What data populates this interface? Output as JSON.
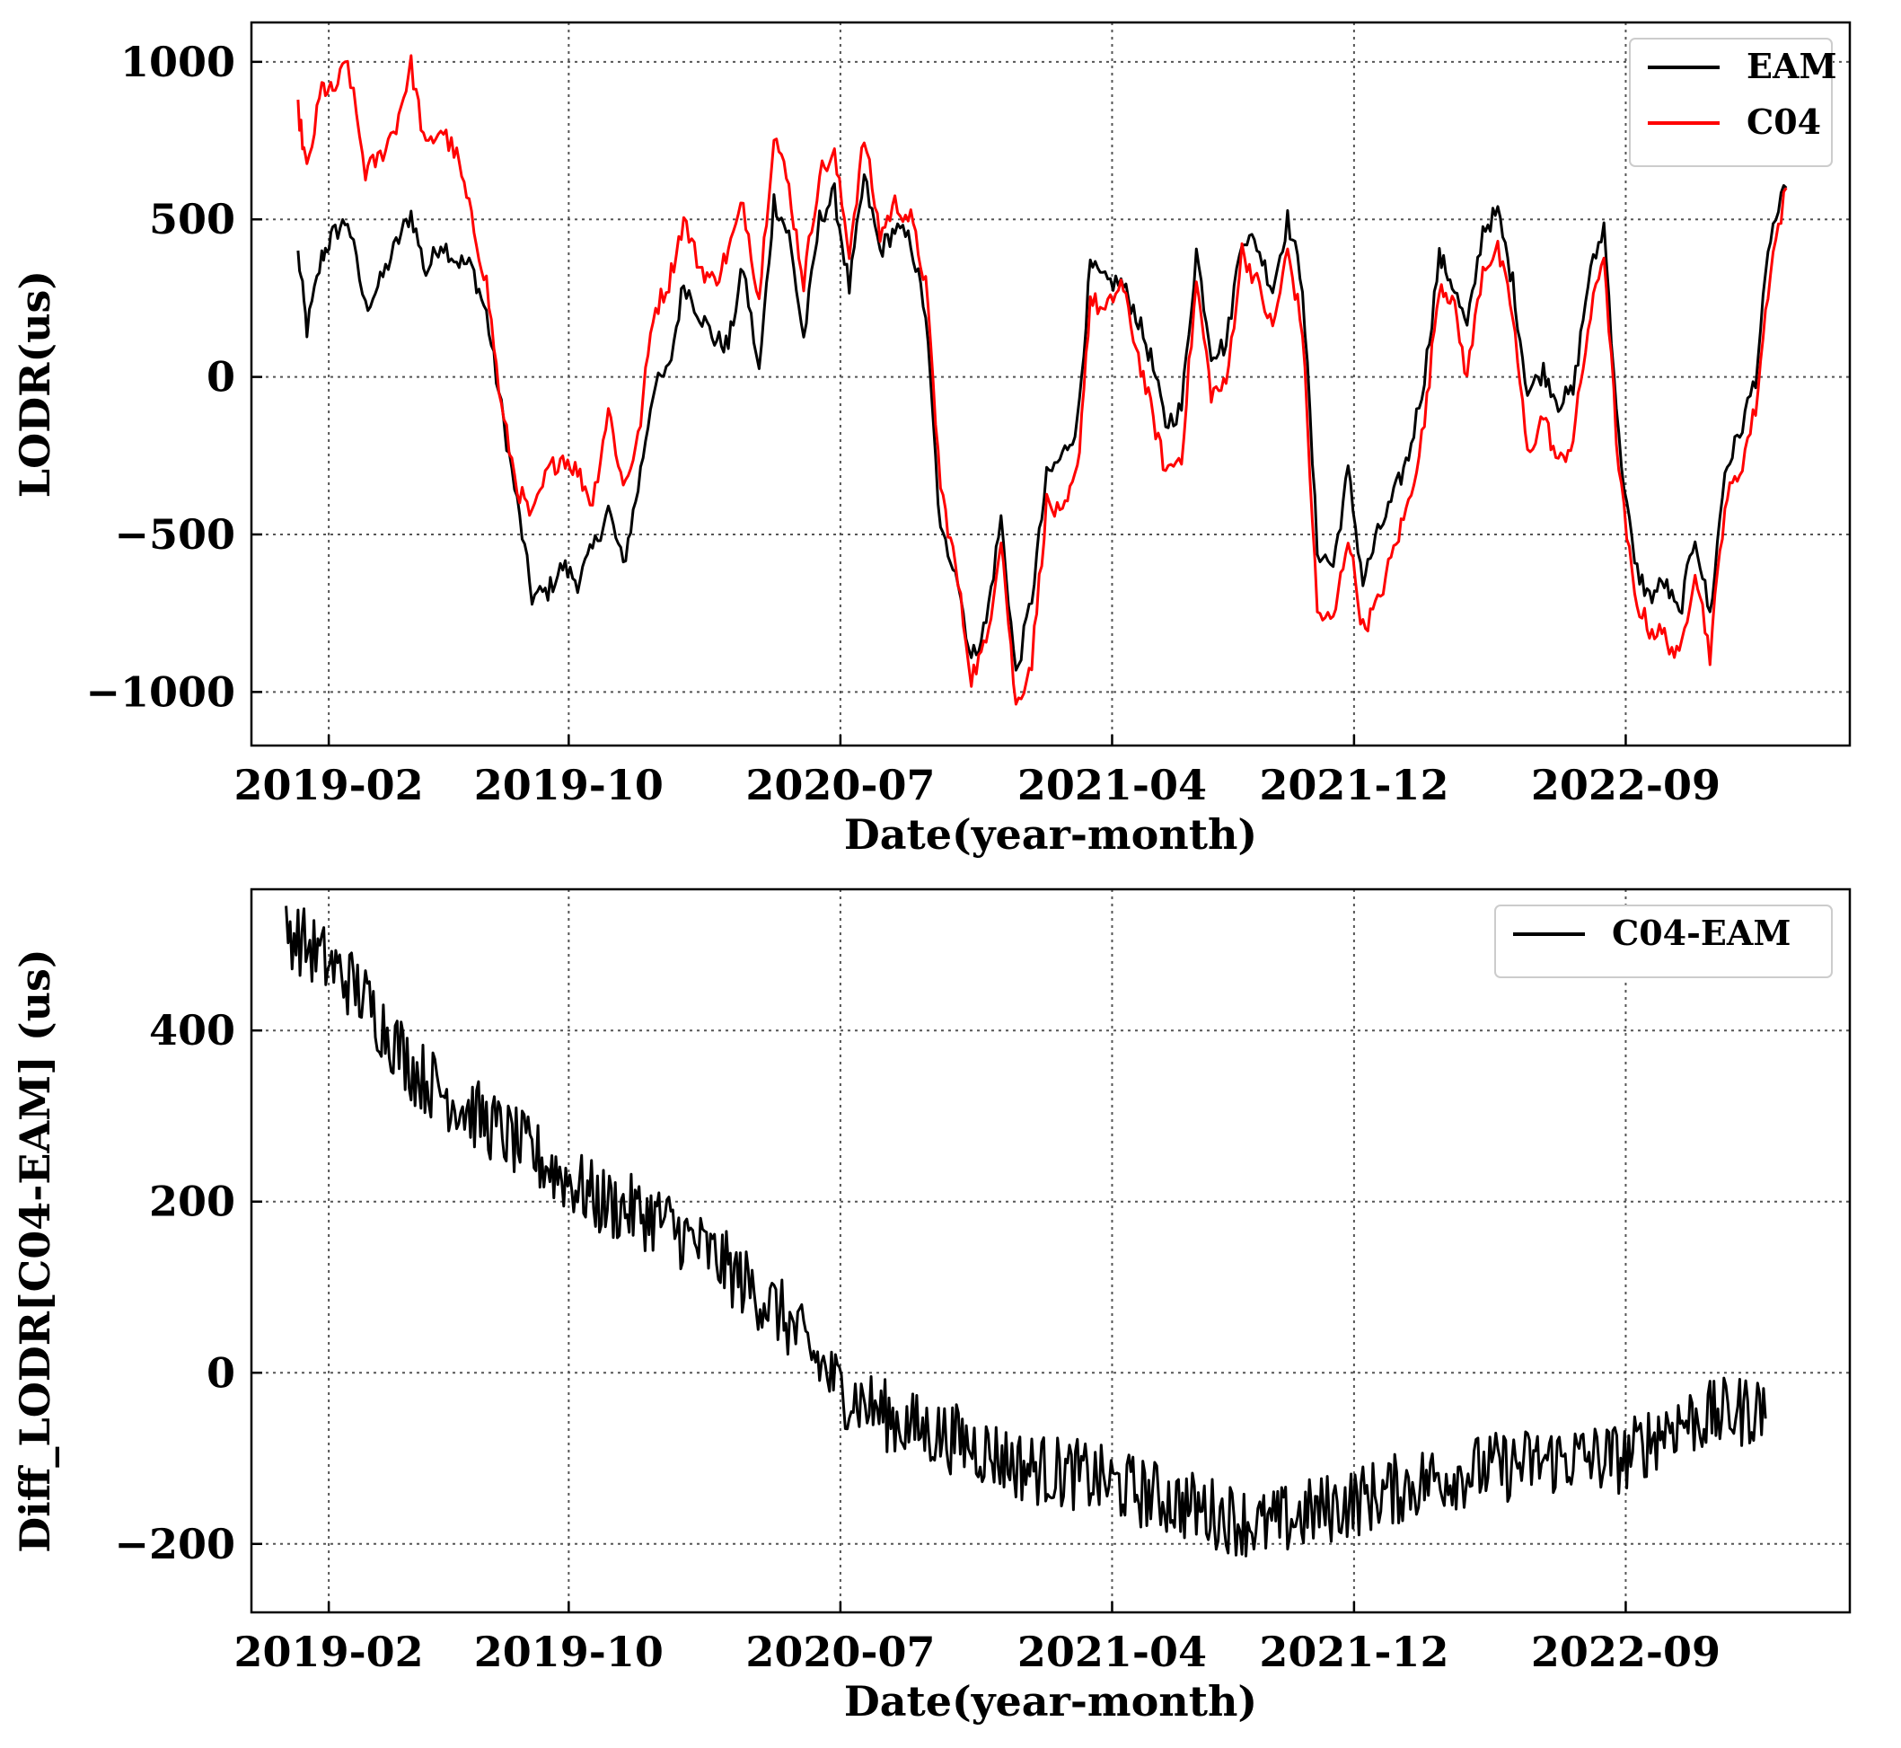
{
  "chart_data": [
    {
      "type": "line",
      "xlabel": "Date(year-month)",
      "ylabel": "LODR(us)",
      "xlim": [
        "2018-11-15",
        "2023-04-15"
      ],
      "ylim": [
        -1170,
        1125
      ],
      "x_ticks": [
        "2019-02",
        "2019-10",
        "2020-07",
        "2021-04",
        "2021-12",
        "2022-09"
      ],
      "y_ticks": [
        1000,
        500,
        0,
        -500,
        -1000
      ],
      "y_tick_labels": [
        "1000",
        "500",
        "0",
        "−5 00",
        "−1000"
      ],
      "grid": true,
      "legend_position": "top-right",
      "series": [
        {
          "name": "EAM",
          "color": "#000000",
          "x": [
            "2019-01-01",
            "2019-01-10",
            "2019-01-25",
            "2019-02-05",
            "2019-02-20",
            "2019-03-10",
            "2019-03-25",
            "2019-04-10",
            "2019-04-25",
            "2019-05-10",
            "2019-05-25",
            "2019-06-10",
            "2019-06-25",
            "2019-07-10",
            "2019-07-25",
            "2019-08-10",
            "2019-08-25",
            "2019-09-10",
            "2019-09-25",
            "2019-10-10",
            "2019-10-25",
            "2019-11-10",
            "2019-11-25",
            "2019-12-10",
            "2019-12-25",
            "2020-01-10",
            "2020-01-25",
            "2020-02-10",
            "2020-02-25",
            "2020-03-10",
            "2020-03-25",
            "2020-04-10",
            "2020-04-25",
            "2020-05-10",
            "2020-05-25",
            "2020-06-10",
            "2020-06-25",
            "2020-07-10",
            "2020-07-25",
            "2020-08-10",
            "2020-08-25",
            "2020-09-10",
            "2020-09-25",
            "2020-10-10",
            "2020-10-25",
            "2020-11-10",
            "2020-11-25",
            "2020-12-10",
            "2020-12-25",
            "2021-01-10",
            "2021-01-25",
            "2021-02-10",
            "2021-02-25",
            "2021-03-10",
            "2021-03-25",
            "2021-04-10",
            "2021-04-25",
            "2021-05-10",
            "2021-05-25",
            "2021-06-10",
            "2021-06-25",
            "2021-07-10",
            "2021-07-25",
            "2021-08-10",
            "2021-08-25",
            "2021-09-10",
            "2021-09-25",
            "2021-10-10",
            "2021-10-25",
            "2021-11-10",
            "2021-11-25",
            "2021-12-10",
            "2021-12-25",
            "2022-01-10",
            "2022-01-25",
            "2022-02-10",
            "2022-02-25",
            "2022-03-10",
            "2022-03-25",
            "2022-04-10",
            "2022-04-25",
            "2022-05-10",
            "2022-05-25",
            "2022-06-10",
            "2022-06-25",
            "2022-07-10",
            "2022-07-25",
            "2022-08-10",
            "2022-08-25",
            "2022-09-10",
            "2022-09-25",
            "2022-10-10",
            "2022-10-25",
            "2022-11-10",
            "2022-11-25",
            "2022-12-10",
            "2022-12-25",
            "2023-01-10",
            "2023-01-25",
            "2023-02-10"
          ],
          "y": [
            390,
            150,
            380,
            450,
            500,
            220,
            300,
            420,
            520,
            330,
            430,
            370,
            350,
            200,
            -100,
            -400,
            -700,
            -680,
            -600,
            -650,
            -550,
            -420,
            -600,
            -350,
            -40,
            20,
            300,
            200,
            120,
            100,
            350,
            10,
            560,
            450,
            120,
            500,
            580,
            280,
            630,
            400,
            470,
            430,
            200,
            -500,
            -600,
            -900,
            -780,
            -450,
            -950,
            -700,
            -320,
            -250,
            -150,
            350,
            300,
            300,
            200,
            60,
            -150,
            -100,
            400,
            80,
            100,
            450,
            420,
            280,
            500,
            300,
            -550,
            -600,
            -300,
            -650,
            -500,
            -380,
            -250,
            0,
            380,
            300,
            150,
            470,
            520,
            300,
            -50,
            20,
            -80,
            -50,
            300,
            480,
            -200,
            -600,
            -700,
            -650,
            -760,
            -500,
            -760,
            -300,
            -180,
            0,
            450,
            600
          ],
          "note_x_alignment": "x and y paired by index; series trimmed to shared length when rendering"
        },
        {
          "name": "C04",
          "color": "#ff0000",
          "x": [
            "2019-01-01",
            "2019-01-10",
            "2019-01-25",
            "2019-02-05",
            "2019-02-20",
            "2019-03-10",
            "2019-03-25",
            "2019-04-10",
            "2019-04-25",
            "2019-05-10",
            "2019-05-25",
            "2019-06-10",
            "2019-06-25",
            "2019-07-10",
            "2019-07-25",
            "2019-08-10",
            "2019-08-25",
            "2019-09-10",
            "2019-09-25",
            "2019-10-10",
            "2019-10-25",
            "2019-11-10",
            "2019-11-25",
            "2019-12-10",
            "2019-12-25",
            "2020-01-10",
            "2020-01-25",
            "2020-02-10",
            "2020-02-25",
            "2020-03-10",
            "2020-03-25",
            "2020-04-10",
            "2020-04-25",
            "2020-05-10",
            "2020-05-25",
            "2020-06-10",
            "2020-06-25",
            "2020-07-10",
            "2020-07-25",
            "2020-08-10",
            "2020-08-25",
            "2020-09-10",
            "2020-09-25",
            "2020-10-10",
            "2020-10-25",
            "2020-11-10",
            "2020-11-25",
            "2020-12-10",
            "2020-12-25",
            "2021-01-10",
            "2021-01-25",
            "2021-02-10",
            "2021-02-25",
            "2021-03-10",
            "2021-03-25",
            "2021-04-10",
            "2021-04-25",
            "2021-05-10",
            "2021-05-25",
            "2021-06-10",
            "2021-06-25",
            "2021-07-10",
            "2021-07-25",
            "2021-08-10",
            "2021-08-25",
            "2021-09-10",
            "2021-09-25",
            "2021-10-10",
            "2021-10-25",
            "2021-11-10",
            "2021-11-25",
            "2021-12-10",
            "2021-12-25",
            "2022-01-10",
            "2022-01-25",
            "2022-02-10",
            "2022-02-25",
            "2022-03-10",
            "2022-03-25",
            "2022-04-10",
            "2022-04-25",
            "2022-05-10",
            "2022-05-25",
            "2022-06-10",
            "2022-06-25",
            "2022-07-10",
            "2022-07-25",
            "2022-08-10",
            "2022-08-25",
            "2022-09-10",
            "2022-09-25",
            "2022-10-10",
            "2022-10-25",
            "2022-11-10",
            "2022-11-25",
            "2022-12-10",
            "2022-12-25",
            "2023-01-10",
            "2023-01-25",
            "2023-02-10"
          ],
          "y": [
            850,
            650,
            920,
            900,
            1000,
            650,
            700,
            800,
            990,
            720,
            790,
            700,
            500,
            300,
            -100,
            -350,
            -450,
            -300,
            -250,
            -300,
            -400,
            -100,
            -350,
            -200,
            200,
            300,
            500,
            350,
            300,
            400,
            550,
            250,
            780,
            600,
            300,
            650,
            700,
            400,
            760,
            450,
            550,
            500,
            300,
            -350,
            -600,
            -950,
            -850,
            -500,
            -1050,
            -900,
            -400,
            -450,
            -300,
            250,
            200,
            300,
            100,
            -100,
            -300,
            -250,
            300,
            -50,
            -30,
            400,
            300,
            150,
            400,
            150,
            -750,
            -780,
            -500,
            -800,
            -720,
            -550,
            -400,
            -150,
            300,
            250,
            0,
            350,
            400,
            200,
            -250,
            -120,
            -280,
            -200,
            150,
            400,
            -300,
            -700,
            -800,
            -820,
            -900,
            -600,
            -880,
            -400,
            -300,
            -100,
            350,
            600
          ]
        }
      ]
    },
    {
      "type": "line",
      "xlabel": "Date(year-month)",
      "ylabel": "Diff_LODR[C04-EAM] (us)",
      "xlim": [
        "2018-11-15",
        "2023-04-15"
      ],
      "ylim": [
        -280,
        565
      ],
      "x_ticks": [
        "2019-02",
        "2019-10",
        "2020-07",
        "2021-04",
        "2021-12",
        "2022-09"
      ],
      "y_ticks": [
        400,
        200,
        0,
        -200
      ],
      "y_tick_labels": [
        "400",
        "200",
        "0",
        "−200"
      ],
      "grid": true,
      "legend_position": "top-right",
      "series": [
        {
          "name": "C04-EAM",
          "color": "#000000",
          "trend_points": {
            "x": [
              "2018-12-20",
              "2019-03-01",
              "2019-05-01",
              "2019-07-01",
              "2019-09-01",
              "2019-11-01",
              "2020-01-01",
              "2020-03-01",
              "2020-05-01",
              "2020-07-01",
              "2020-09-01",
              "2020-11-01",
              "2021-01-01",
              "2021-03-01",
              "2021-05-01",
              "2021-07-01",
              "2021-09-01",
              "2021-11-01",
              "2022-01-01",
              "2022-03-01",
              "2022-05-01",
              "2022-07-01",
              "2022-09-01",
              "2022-10-15",
              "2022-12-01",
              "2023-01-20"
            ],
            "y": [
              520,
              450,
              350,
              300,
              250,
              200,
              180,
              130,
              70,
              -20,
              -60,
              -80,
              -110,
              -120,
              -140,
              -160,
              -180,
              -160,
              -140,
              -120,
              -110,
              -100,
              -100,
              -60,
              -50,
              -40
            ]
          }
        }
      ]
    }
  ]
}
